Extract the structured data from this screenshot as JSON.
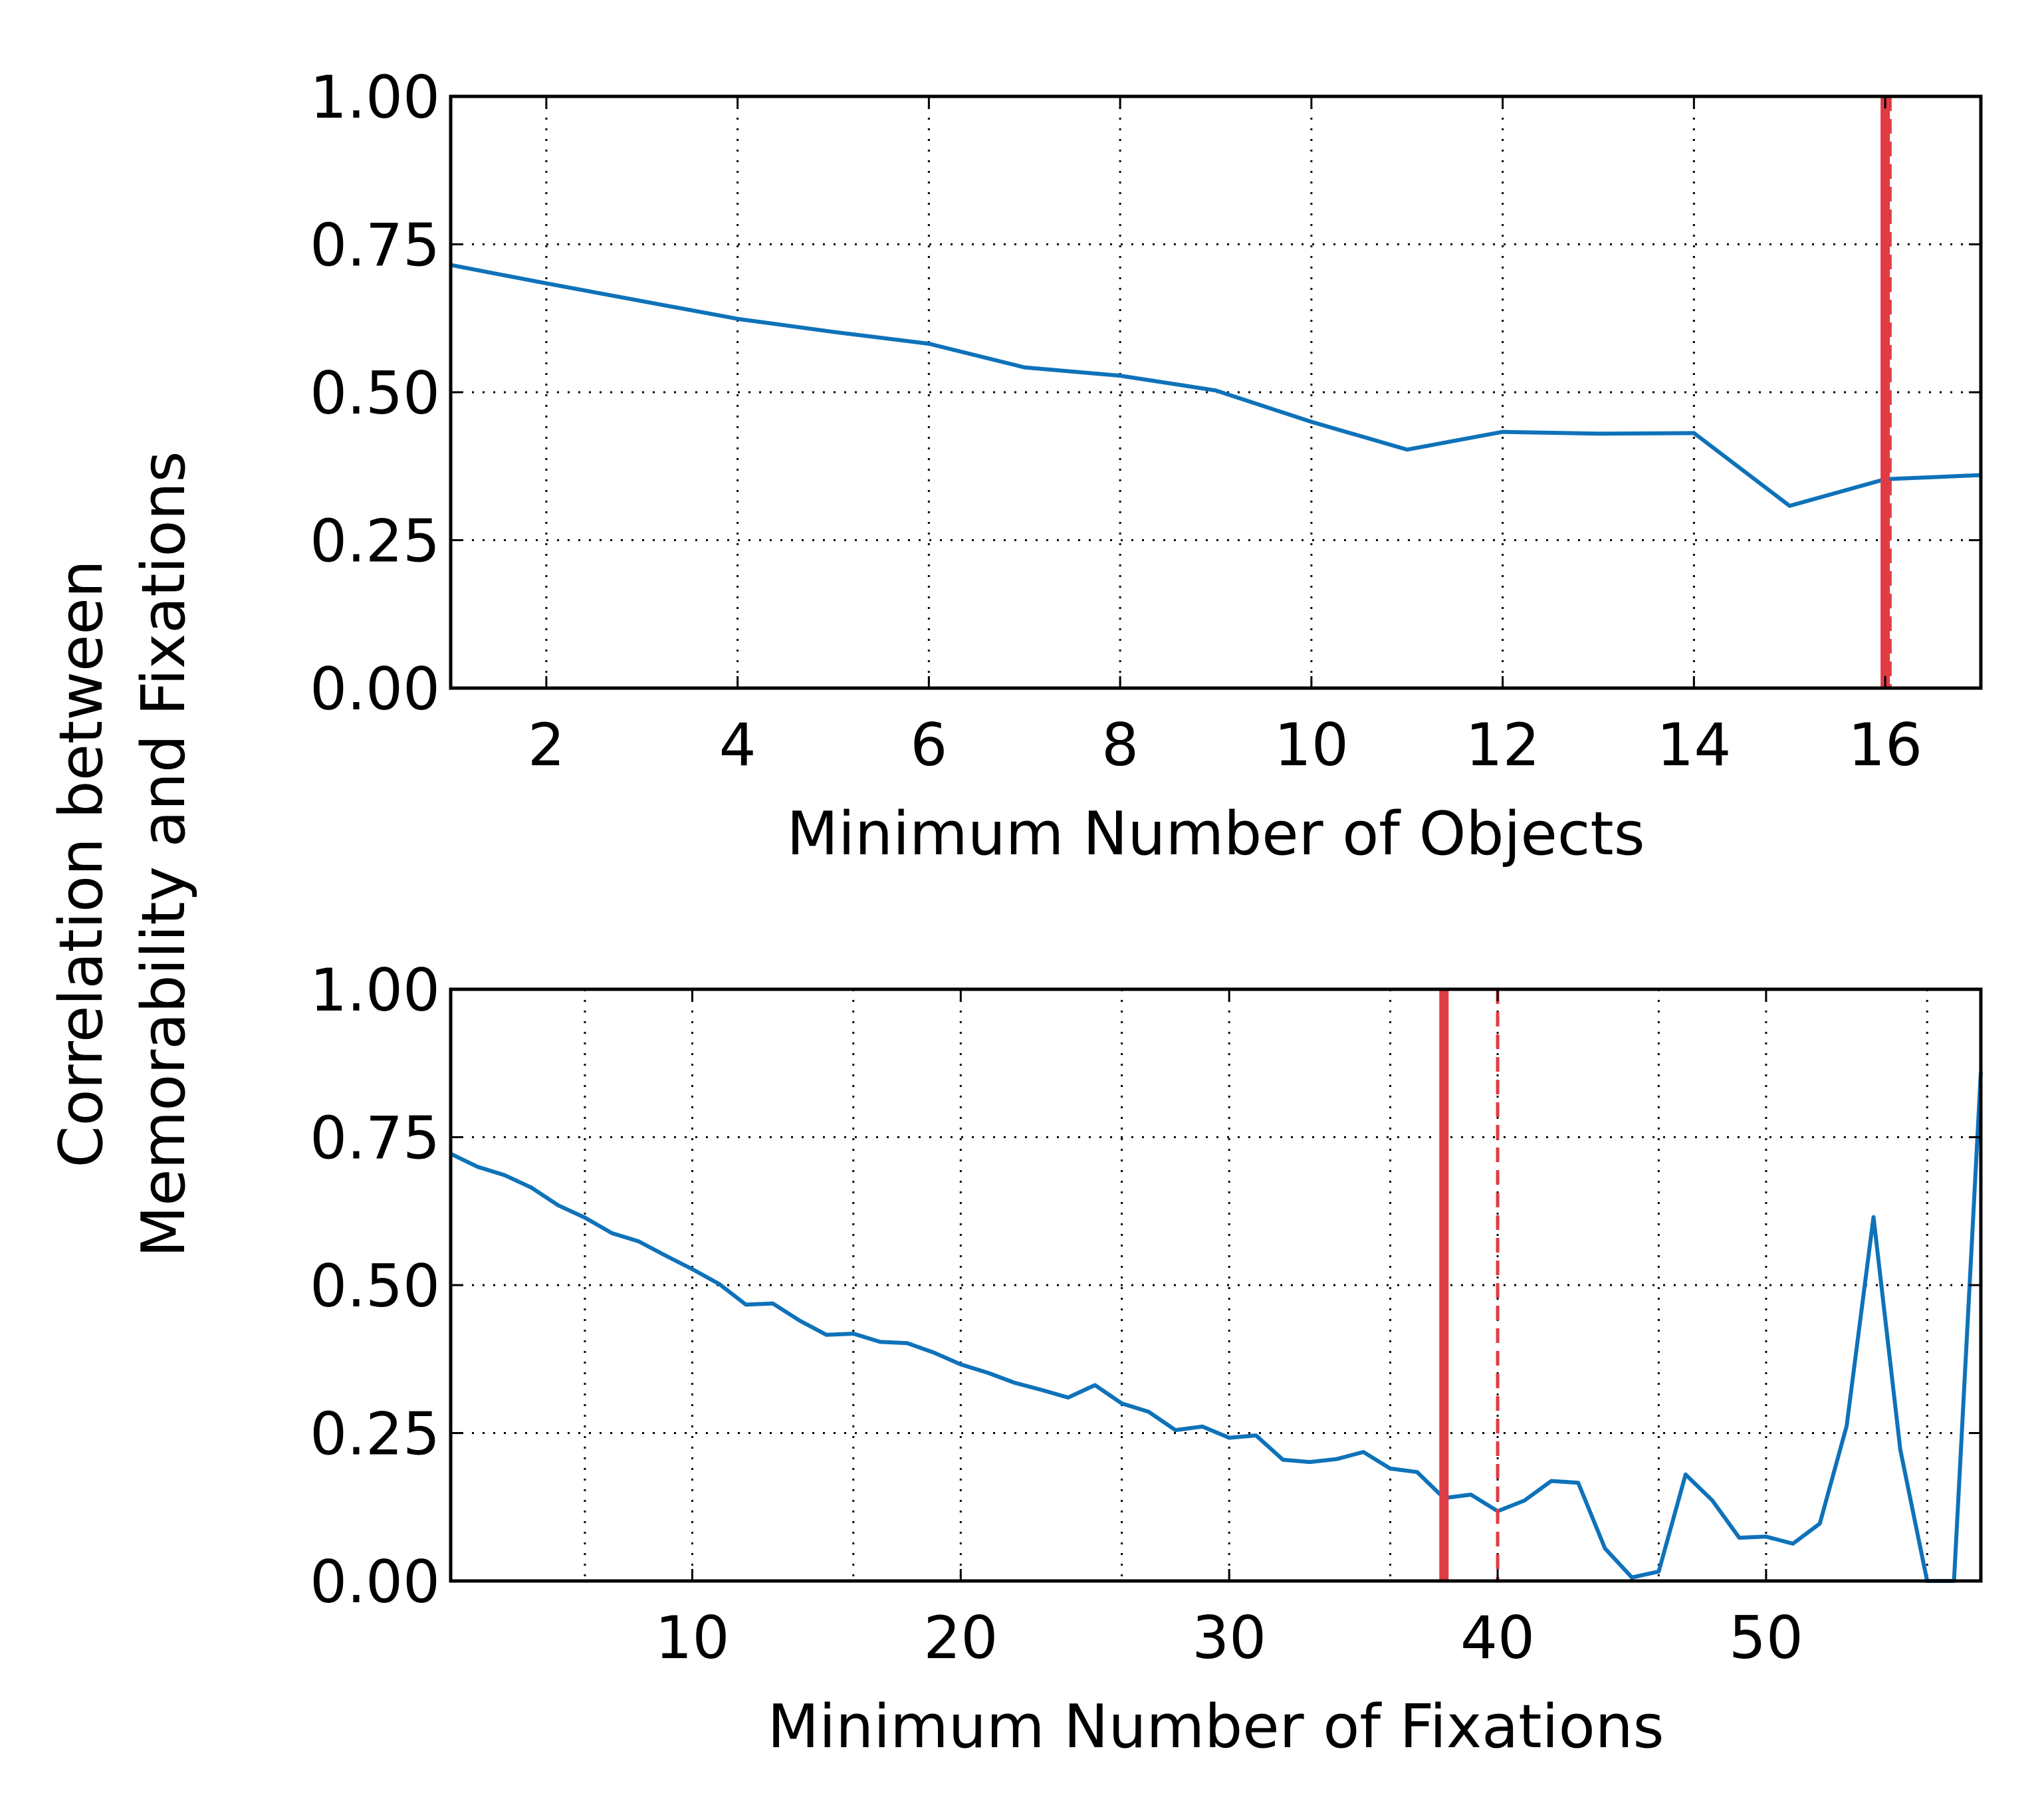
{
  "figure": {
    "shared_ylabel": "Correlation between\nMemorability and Fixations"
  },
  "chart_data": [
    {
      "type": "line",
      "xlabel": "Minimum Number of Objects",
      "ylabel": "Correlation between Memorability and Fixations",
      "xlim": [
        1,
        17
      ],
      "ylim": [
        0,
        1
      ],
      "xticks": [
        2,
        4,
        6,
        8,
        10,
        12,
        14,
        16
      ],
      "xtick_labels": [
        "2",
        "4",
        "6",
        "8",
        "10",
        "12",
        "14",
        "16"
      ],
      "yticks": [
        0,
        0.25,
        0.5,
        0.75,
        1.0
      ],
      "ytick_labels": [
        "0.00",
        "0.25",
        "0.50",
        "0.75",
        "1.00"
      ],
      "grid": true,
      "series": [
        {
          "color": "#0e72b9",
          "x": [
            1,
            2,
            3,
            4,
            5,
            6,
            7,
            8,
            9,
            10,
            11,
            12,
            13,
            14,
            15,
            16,
            17
          ],
          "y": [
            0.715,
            0.684,
            0.654,
            0.624,
            0.602,
            0.582,
            0.542,
            0.528,
            0.503,
            0.45,
            0.403,
            0.433,
            0.43,
            0.431,
            0.308,
            0.353,
            0.36
          ]
        }
      ],
      "vlines": [
        {
          "x": 16.0,
          "style": "solid",
          "color": "#e03c45"
        },
        {
          "x": 16.05,
          "style": "dashed",
          "color": "#e03c45"
        }
      ]
    },
    {
      "type": "line",
      "xlabel": "Minimum Number of Fixations",
      "ylabel": "Correlation between Memorability and Fixations",
      "xlim": [
        1,
        58
      ],
      "ylim": [
        0,
        1
      ],
      "xticks": [
        10,
        20,
        30,
        40,
        50
      ],
      "xtick_labels": [
        "10",
        "20",
        "30",
        "40",
        "50"
      ],
      "extra_xgrid": [
        6,
        16,
        26,
        36,
        46,
        56
      ],
      "yticks": [
        0,
        0.25,
        0.5,
        0.75,
        1.0
      ],
      "ytick_labels": [
        "0.00",
        "0.25",
        "0.50",
        "0.75",
        "1.00"
      ],
      "grid": true,
      "series": [
        {
          "color": "#0e72b9",
          "x": [
            1,
            2,
            3,
            4,
            5,
            6,
            7,
            8,
            9,
            10,
            11,
            12,
            13,
            14,
            15,
            16,
            17,
            18,
            19,
            20,
            21,
            22,
            23,
            24,
            25,
            26,
            27,
            28,
            29,
            30,
            31,
            32,
            33,
            34,
            35,
            36,
            37,
            38,
            39,
            40,
            41,
            42,
            43,
            44,
            45,
            46,
            47,
            48,
            49,
            50,
            51,
            52,
            53,
            54,
            55,
            56,
            57,
            58
          ],
          "y": [
            0.722,
            0.7,
            0.686,
            0.665,
            0.635,
            0.614,
            0.588,
            0.574,
            0.55,
            0.527,
            0.502,
            0.467,
            0.469,
            0.44,
            0.416,
            0.418,
            0.404,
            0.402,
            0.386,
            0.366,
            0.352,
            0.335,
            0.323,
            0.31,
            0.331,
            0.3,
            0.286,
            0.255,
            0.261,
            0.242,
            0.246,
            0.205,
            0.201,
            0.206,
            0.218,
            0.19,
            0.184,
            0.14,
            0.146,
            0.118,
            0.136,
            0.169,
            0.166,
            0.055,
            0.006,
            0.016,
            0.18,
            0.136,
            0.073,
            0.075,
            0.063,
            0.097,
            0.262,
            0.615,
            0.222,
            0.0,
            0.0,
            0.86
          ]
        }
      ],
      "vlines": [
        {
          "x": 38,
          "style": "solid",
          "color": "#e03c45"
        },
        {
          "x": 40,
          "style": "dashed",
          "color": "#e03c45"
        }
      ]
    }
  ]
}
